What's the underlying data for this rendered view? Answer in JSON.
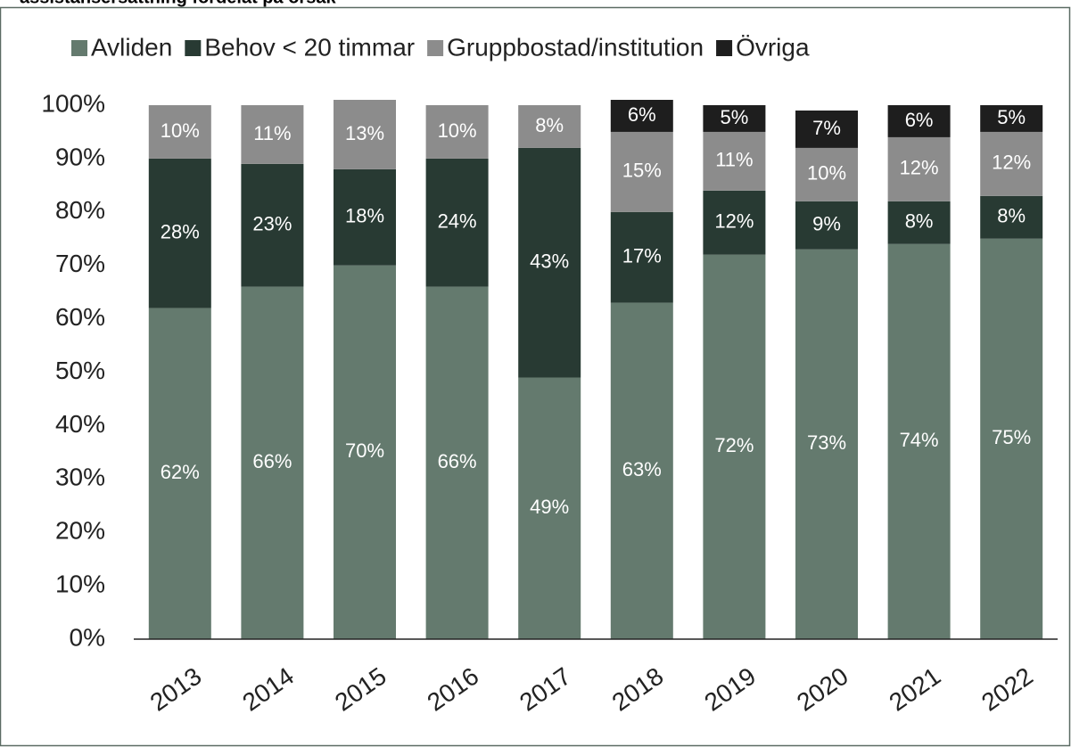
{
  "chart_data": {
    "type": "stacked_bar",
    "title": "assistansersättning fördelat på orsak",
    "categories": [
      "2013",
      "2014",
      "2015",
      "2016",
      "2017",
      "2018",
      "2019",
      "2020",
      "2021",
      "2022"
    ],
    "series": [
      {
        "name": "Avliden",
        "color": "#647a6e",
        "values": [
          62,
          66,
          70,
          66,
          49,
          63,
          72,
          73,
          74,
          75
        ],
        "value_labels": [
          "62%",
          "66%",
          "70%",
          "66%",
          "49%",
          "63%",
          "72%",
          "73%",
          "74%",
          "75%"
        ]
      },
      {
        "name": "Behov < 20 timmar",
        "color": "#283a33",
        "values": [
          28,
          23,
          18,
          24,
          43,
          17,
          12,
          9,
          8,
          8
        ],
        "value_labels": [
          "28%",
          "23%",
          "18%",
          "24%",
          "43%",
          "17%",
          "12%",
          "9%",
          "8%",
          "8%"
        ]
      },
      {
        "name": "Gruppbostad/institution",
        "color": "#8c8c8c",
        "values": [
          10,
          11,
          13,
          10,
          8,
          15,
          11,
          10,
          12,
          12
        ],
        "value_labels": [
          "10%",
          "11%",
          "13%",
          "10%",
          "8%",
          "15%",
          "11%",
          "10%",
          "12%",
          "12%"
        ]
      },
      {
        "name": "Övriga",
        "color": "#1e1e1e",
        "values": [
          null,
          null,
          null,
          null,
          null,
          6,
          5,
          7,
          6,
          5
        ],
        "value_labels": [
          null,
          null,
          null,
          null,
          null,
          "6%",
          "5%",
          "7%",
          "6%",
          "5%"
        ]
      }
    ],
    "ylim": [
      0,
      100
    ],
    "yticks": [
      {
        "value": 0,
        "label": "0%"
      },
      {
        "value": 10,
        "label": "10%"
      },
      {
        "value": 20,
        "label": "20%"
      },
      {
        "value": 30,
        "label": "30%"
      },
      {
        "value": 40,
        "label": "40%"
      },
      {
        "value": 50,
        "label": "50%"
      },
      {
        "value": 60,
        "label": "60%"
      },
      {
        "value": 70,
        "label": "70%"
      },
      {
        "value": 80,
        "label": "80%"
      },
      {
        "value": 90,
        "label": "90%"
      },
      {
        "value": 100,
        "label": "100%"
      }
    ],
    "legend": "top"
  }
}
